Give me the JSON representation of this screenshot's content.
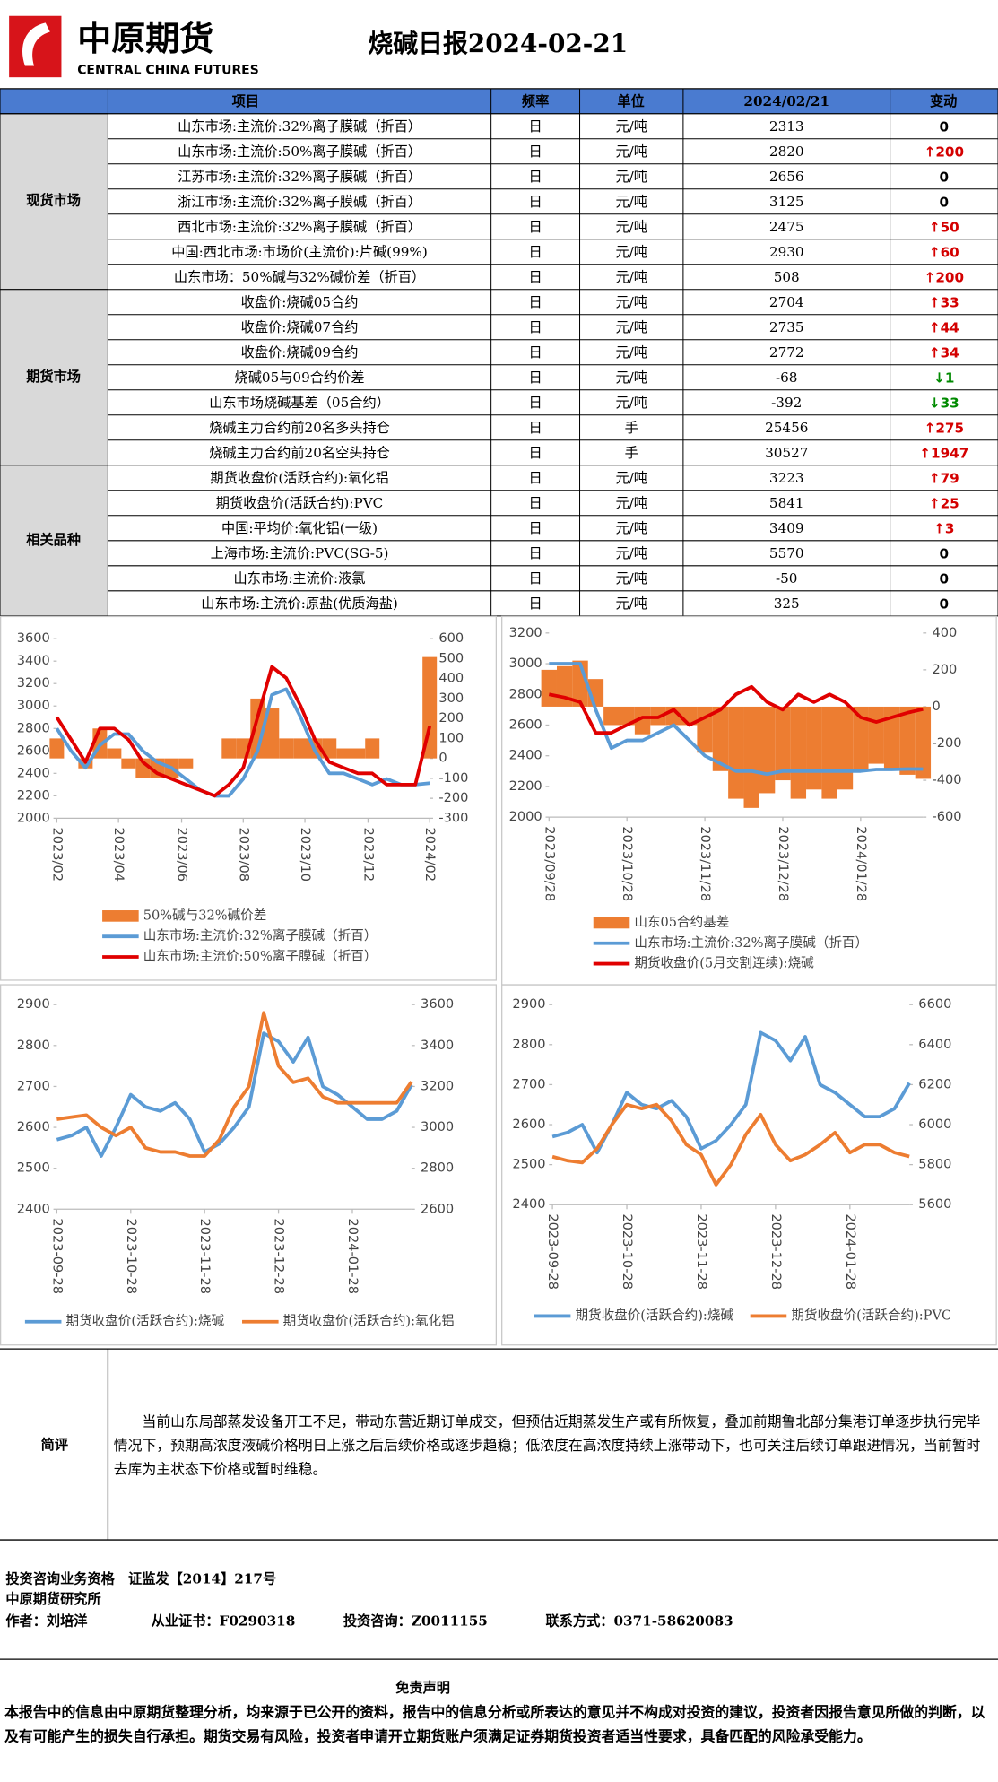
{
  "header": {
    "brand": "中原期货",
    "brand_en": "CENTRAL CHINA FUTURES",
    "title": "烧碱日报2024-02-21"
  },
  "table": {
    "columns": [
      "项目",
      "频率",
      "单位",
      "2024/02/21",
      "变动"
    ],
    "groups": [
      {
        "name": "现货市场",
        "rows": [
          [
            "山东市场:主流价:32%离子膜碱（折百）",
            "日",
            "元/吨",
            2313,
            "0"
          ],
          [
            "山东市场:主流价:50%离子膜碱（折百）",
            "日",
            "元/吨",
            2820,
            "↑200"
          ],
          [
            "江苏市场:主流价:32%离子膜碱（折百）",
            "日",
            "元/吨",
            2656,
            "0"
          ],
          [
            "浙江市场:主流价:32%离子膜碱（折百）",
            "日",
            "元/吨",
            3125,
            "0"
          ],
          [
            "西北市场:主流价:32%离子膜碱（折百）",
            "日",
            "元/吨",
            2475,
            "↑50"
          ],
          [
            "中国:西北市场:市场价(主流价):片碱(99%)",
            "日",
            "元/吨",
            2930,
            "↑60"
          ],
          [
            "山东市场：50%碱与32%碱价差（折百）",
            "日",
            "元/吨",
            508,
            "↑200"
          ]
        ]
      },
      {
        "name": "期货市场",
        "rows": [
          [
            "收盘价:烧碱05合约",
            "日",
            "元/吨",
            2704,
            "↑33"
          ],
          [
            "收盘价:烧碱07合约",
            "日",
            "元/吨",
            2735,
            "↑44"
          ],
          [
            "收盘价:烧碱09合约",
            "日",
            "元/吨",
            2772,
            "↑34"
          ],
          [
            "烧碱05与09合约价差",
            "日",
            "元/吨",
            -68,
            "↓1"
          ],
          [
            "山东市场烧碱基差（05合约）",
            "日",
            "元/吨",
            -392,
            "↓33"
          ],
          [
            "烧碱主力合约前20名多头持仓",
            "日",
            "手",
            25456,
            "↑275"
          ],
          [
            "烧碱主力合约前20名空头持仓",
            "日",
            "手",
            30527,
            "↑1947"
          ]
        ]
      },
      {
        "name": "相关品种",
        "rows": [
          [
            "期货收盘价(活跃合约):氧化铝",
            "日",
            "元/吨",
            3223,
            "↑79"
          ],
          [
            "期货收盘价(活跃合约):PVC",
            "日",
            "元/吨",
            5841,
            "↑25"
          ],
          [
            "中国:平均价:氧化铝(一级)",
            "日",
            "元/吨",
            3409,
            "↑3"
          ],
          [
            "上海市场:主流价:PVC(SG-5)",
            "日",
            "元/吨",
            5570,
            "0"
          ],
          [
            "山东市场:主流价:液氯",
            "日",
            "元/吨",
            -50,
            "0"
          ],
          [
            "山东市场:主流价:原盐(优质海盐)",
            "日",
            "元/吨",
            325,
            "0"
          ]
        ]
      }
    ]
  },
  "charts": [
    {
      "type": "line",
      "legend": "bottom",
      "xlim": [
        0,
        26
      ],
      "xticks": [
        {
          "value": 0,
          "label": "2023/02"
        },
        {
          "value": 4.3,
          "label": "2023/04"
        },
        {
          "value": 8.7,
          "label": "2023/06"
        },
        {
          "value": 13,
          "label": "2023/08"
        },
        {
          "value": 17.3,
          "label": "2023/10"
        },
        {
          "value": 21.7,
          "label": "2023/12"
        },
        {
          "value": 26,
          "label": "2024/02"
        }
      ],
      "ylim": [
        2000,
        3600
      ],
      "yticks": [
        2000,
        2200,
        2400,
        2600,
        2800,
        3000,
        3200,
        3400,
        3600
      ],
      "y2lim": [
        -300,
        600
      ],
      "y2ticks": [
        -300,
        -200,
        -100,
        0,
        100,
        200,
        300,
        400,
        500,
        600
      ],
      "series": [
        {
          "name": "50%碱与32%碱价差",
          "type": "area",
          "axis": "y2",
          "color": "#ed7d31",
          "values": [
            100,
            0,
            -50,
            150,
            50,
            -50,
            -100,
            -100,
            -100,
            -50,
            0,
            0,
            100,
            100,
            300,
            250,
            100,
            100,
            100,
            100,
            50,
            50,
            100,
            0,
            0,
            0,
            508
          ]
        },
        {
          "name": "山东市场:主流价:32%离子膜碱（折百）",
          "type": "line",
          "color": "#5b9bd5",
          "values": [
            2800,
            2600,
            2450,
            2650,
            2750,
            2750,
            2600,
            2500,
            2450,
            2350,
            2250,
            2200,
            2200,
            2350,
            2600,
            3100,
            3150,
            2900,
            2600,
            2400,
            2400,
            2350,
            2300,
            2350,
            2300,
            2300,
            2313
          ]
        },
        {
          "name": "山东市场:主流价:50%离子膜碱（折百）",
          "type": "line",
          "color": "#e00000",
          "values": [
            2900,
            2700,
            2500,
            2800,
            2800,
            2700,
            2500,
            2400,
            2350,
            2300,
            2250,
            2200,
            2300,
            2450,
            2900,
            3350,
            3250,
            3000,
            2700,
            2500,
            2450,
            2400,
            2400,
            2300,
            2300,
            2300,
            2820
          ]
        }
      ]
    },
    {
      "type": "line",
      "legend": "bottom",
      "xlim": [
        0,
        24
      ],
      "xticks": [
        {
          "value": 0,
          "label": "2023/09/28"
        },
        {
          "value": 5,
          "label": "2023/10/28"
        },
        {
          "value": 10,
          "label": "2023/11/28"
        },
        {
          "value": 15,
          "label": "2023/12/28"
        },
        {
          "value": 20,
          "label": "2024/01/28"
        }
      ],
      "ylim": [
        2000,
        3200
      ],
      "yticks": [
        2000,
        2200,
        2400,
        2600,
        2800,
        3000,
        3200
      ],
      "y2lim": [
        -600,
        400
      ],
      "y2ticks": [
        -600,
        -400,
        -200,
        0,
        200,
        400
      ],
      "series": [
        {
          "name": "山东05合约基差",
          "type": "area",
          "axis": "y2",
          "color": "#ed7d31",
          "values": [
            200,
            220,
            250,
            150,
            -100,
            -100,
            -150,
            -100,
            -100,
            -100,
            -250,
            -350,
            -500,
            -550,
            -470,
            -400,
            -500,
            -450,
            -500,
            -450,
            -350,
            -310,
            -340,
            -370,
            -392
          ]
        },
        {
          "name": "山东市场:主流价:32%离子膜碱（折百）",
          "type": "line",
          "color": "#5b9bd5",
          "values": [
            3000,
            3000,
            3000,
            2700,
            2450,
            2500,
            2500,
            2550,
            2600,
            2500,
            2400,
            2350,
            2300,
            2300,
            2280,
            2300,
            2300,
            2300,
            2300,
            2300,
            2300,
            2310,
            2310,
            2313,
            2313
          ]
        },
        {
          "name": "期货收盘价(5月交割连续):烧碱",
          "type": "line",
          "color": "#e00000",
          "values": [
            2800,
            2780,
            2750,
            2550,
            2550,
            2600,
            2650,
            2650,
            2700,
            2600,
            2650,
            2700,
            2800,
            2850,
            2750,
            2700,
            2800,
            2750,
            2800,
            2750,
            2650,
            2620,
            2650,
            2680,
            2704
          ]
        }
      ]
    },
    {
      "type": "line",
      "legend": "bottom",
      "xlim": [
        0,
        24
      ],
      "xticks": [
        {
          "value": 0,
          "label": "2023-09-28"
        },
        {
          "value": 5,
          "label": "2023-10-28"
        },
        {
          "value": 10,
          "label": "2023-11-28"
        },
        {
          "value": 15,
          "label": "2023-12-28"
        },
        {
          "value": 20,
          "label": "2024-01-28"
        }
      ],
      "ylim": [
        2400,
        2900
      ],
      "yticks": [
        2400,
        2500,
        2600,
        2700,
        2800,
        2900
      ],
      "y2lim": [
        2600,
        3600
      ],
      "y2ticks": [
        2600,
        2800,
        3000,
        3200,
        3400,
        3600
      ],
      "series": [
        {
          "name": "期货收盘价(活跃合约):烧碱",
          "type": "line",
          "color": "#5b9bd5",
          "values": [
            2570,
            2580,
            2600,
            2530,
            2600,
            2680,
            2650,
            2640,
            2660,
            2620,
            2540,
            2560,
            2600,
            2650,
            2830,
            2810,
            2760,
            2820,
            2700,
            2680,
            2650,
            2620,
            2620,
            2640,
            2704
          ]
        },
        {
          "name": "期货收盘价(活跃合约):氧化铝",
          "type": "line",
          "axis": "y2",
          "color": "#ed7d31",
          "values": [
            3040,
            3050,
            3060,
            3000,
            2960,
            3000,
            2900,
            2880,
            2880,
            2860,
            2860,
            2940,
            3100,
            3200,
            3560,
            3300,
            3220,
            3240,
            3150,
            3120,
            3120,
            3120,
            3120,
            3120,
            3223
          ]
        }
      ]
    },
    {
      "type": "line",
      "legend": "bottom",
      "xlim": [
        0,
        24
      ],
      "xticks": [
        {
          "value": 0,
          "label": "2023-09-28"
        },
        {
          "value": 5,
          "label": "2023-10-28"
        },
        {
          "value": 10,
          "label": "2023-11-28"
        },
        {
          "value": 15,
          "label": "2023-12-28"
        },
        {
          "value": 20,
          "label": "2024-01-28"
        }
      ],
      "ylim": [
        2400,
        2900
      ],
      "yticks": [
        2400,
        2500,
        2600,
        2700,
        2800,
        2900
      ],
      "y2lim": [
        5600,
        6600
      ],
      "y2ticks": [
        5600,
        5800,
        6000,
        6200,
        6400,
        6600
      ],
      "series": [
        {
          "name": "期货收盘价(活跃合约):烧碱",
          "type": "line",
          "color": "#5b9bd5",
          "values": [
            2570,
            2580,
            2600,
            2530,
            2600,
            2680,
            2650,
            2640,
            2660,
            2620,
            2540,
            2560,
            2600,
            2650,
            2830,
            2810,
            2760,
            2820,
            2700,
            2680,
            2650,
            2620,
            2620,
            2640,
            2704
          ]
        },
        {
          "name": "期货收盘价(活跃合约):PVC",
          "type": "line",
          "axis": "y2",
          "color": "#ed7d31",
          "values": [
            5840,
            5820,
            5810,
            5880,
            6000,
            6100,
            6080,
            6100,
            6020,
            5900,
            5850,
            5700,
            5800,
            5950,
            6050,
            5900,
            5820,
            5850,
            5900,
            5960,
            5860,
            5900,
            5900,
            5860,
            5841
          ]
        }
      ]
    }
  ],
  "comment": {
    "label": "简评",
    "text": "当前山东局部蒸发设备开工不足，带动东营近期订单成交，但预估近期蒸发生产或有所恢复，叠加前期鲁北部分集港订单逐步执行完毕情况下，预期高浓度液碱价格明日上涨之后后续价格或逐步趋稳；低浓度在高浓度持续上涨带动下，也可关注后续订单跟进情况，当前暂时去库为主状态下价格或暂时维稳。"
  },
  "footer": {
    "qualification": "投资咨询业务资格　证监发【2014】217号",
    "institute": "中原期货研究所",
    "author": "作者：刘培洋",
    "license": "从业证书：F0290318",
    "consult": "投资咨询：Z0011155",
    "contact": "联系方式：0371-58620083"
  },
  "disclaimer": {
    "title": "免责声明",
    "text": "本报告中的信息由中原期货整理分析，均来源于已公开的资料，报告中的信息分析或所表达的意见并不构成对投资的建议，投资者因报告意见所做的判断，以及有可能产生的损失自行承担。期货交易有风险，投资者申请开立期货账户须满足证券期货投资者适当性要求，具备匹配的风险承受能力。"
  }
}
